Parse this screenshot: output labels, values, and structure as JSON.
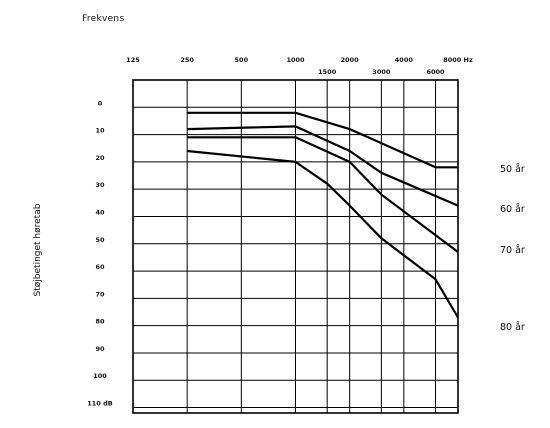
{
  "chart_data": {
    "type": "line",
    "title": "Frekvens",
    "ylabel": "Støjbetinget høretab",
    "x_scale": "log",
    "xlim": [
      125,
      8000
    ],
    "ylim": [
      0,
      110
    ],
    "y_inverted": true,
    "grid": true,
    "x_ticks_top": [
      {
        "value": 125,
        "label": "125"
      },
      {
        "value": 250,
        "label": "250"
      },
      {
        "value": 500,
        "label": "500"
      },
      {
        "value": 1000,
        "label": "1000"
      },
      {
        "value": 2000,
        "label": "2000"
      },
      {
        "value": 4000,
        "label": "4000"
      },
      {
        "value": 8000,
        "label": "8000 Hz"
      }
    ],
    "x_ticks_bottom": [
      {
        "value": 1500,
        "label": "1500"
      },
      {
        "value": 3000,
        "label": "3000"
      },
      {
        "value": 6000,
        "label": "6000"
      }
    ],
    "y_ticks": [
      {
        "value": 0,
        "label": "0"
      },
      {
        "value": 10,
        "label": "10"
      },
      {
        "value": 20,
        "label": "20"
      },
      {
        "value": 30,
        "label": "30"
      },
      {
        "value": 40,
        "label": "40"
      },
      {
        "value": 50,
        "label": "50"
      },
      {
        "value": 60,
        "label": "60"
      },
      {
        "value": 70,
        "label": "70"
      },
      {
        "value": 80,
        "label": "80"
      },
      {
        "value": 90,
        "label": "90"
      },
      {
        "value": 100,
        "label": "100"
      },
      {
        "value": 110,
        "label": "110 dB"
      }
    ],
    "series": [
      {
        "name": "50 år",
        "x": [
          250,
          1000,
          2000,
          6000,
          8000
        ],
        "y": [
          2,
          2,
          8,
          22,
          22
        ]
      },
      {
        "name": "60 år",
        "x": [
          250,
          1000,
          2000,
          3000,
          8000
        ],
        "y": [
          8,
          7,
          16,
          24,
          36
        ]
      },
      {
        "name": "70 år",
        "x": [
          250,
          1000,
          2000,
          3000,
          8000
        ],
        "y": [
          11,
          11,
          20,
          32,
          53
        ]
      },
      {
        "name": "80 år",
        "x": [
          250,
          1000,
          1500,
          2000,
          3000,
          6000,
          8000
        ],
        "y": [
          16,
          20,
          28,
          36,
          48,
          63,
          77
        ]
      }
    ]
  }
}
